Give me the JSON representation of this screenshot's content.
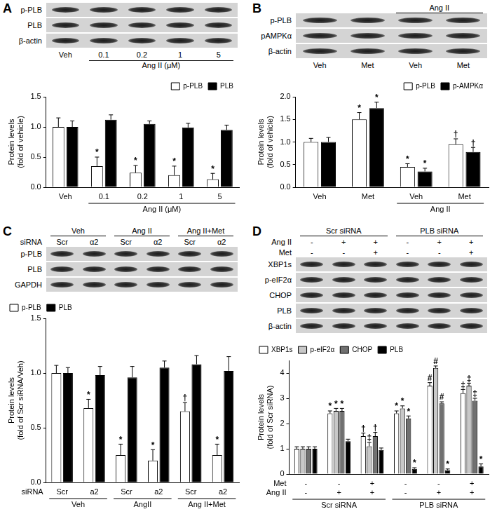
{
  "chart_data": [
    {
      "panel": "A",
      "type": "bar",
      "y_label": "Protein levels (fold of vehicle)",
      "categories": [
        "Veh",
        "0.1",
        "0.2",
        "1",
        "5"
      ],
      "groups": [
        {
          "label": "Ang II (μM)",
          "from": 1,
          "to": 4
        }
      ],
      "series": [
        {
          "name": "p-PLB",
          "color": "#ffffff",
          "values": [
            1.0,
            0.35,
            0.24,
            0.2,
            0.13
          ],
          "errors": [
            0.15,
            0.15,
            0.12,
            0.15,
            0.1
          ],
          "annotations": [
            null,
            "*",
            "*",
            "*",
            "*"
          ]
        },
        {
          "name": "PLB",
          "color": "#000000",
          "values": [
            1.0,
            1.12,
            1.05,
            0.99,
            0.95
          ],
          "errors": [
            0.1,
            0.08,
            0.05,
            0.07,
            0.08
          ]
        }
      ],
      "ylim": [
        0,
        1.5
      ],
      "yticks": [
        {
          "value": 0,
          "label": "0.0"
        },
        0.5,
        {
          "value": 1,
          "label": "1.0"
        },
        1.5
      ],
      "grid": false,
      "legend": "upper right",
      "blot": {
        "rows": [
          "p-PLB",
          "PLB",
          "β-actin"
        ],
        "header": [],
        "footer": [
          {
            "labels": [
              "Veh",
              "0.1",
              "0.2",
              "1",
              "5"
            ]
          },
          {
            "groups": [
              {
                "label": "Ang II (μM)",
                "from": 1,
                "to": 4
              }
            ]
          }
        ]
      }
    },
    {
      "panel": "B",
      "type": "bar",
      "y_label": "Protein levels (fold of vehicle)",
      "categories": [
        "Veh",
        "Met",
        "Veh",
        "Met"
      ],
      "groups": [
        {
          "label": "Ang II",
          "from": 2,
          "to": 3
        }
      ],
      "series": [
        {
          "name": "p-PLB",
          "color": "#ffffff",
          "values": [
            1.0,
            1.5,
            0.45,
            0.95
          ],
          "errors": [
            0.08,
            0.15,
            0.07,
            0.12
          ],
          "annotations": [
            null,
            "*",
            "*",
            "†"
          ]
        },
        {
          "name": "p-AMPKα",
          "color": "#000000",
          "values": [
            1.0,
            1.75,
            0.35,
            0.78
          ],
          "errors": [
            0.1,
            0.13,
            0.07,
            0.1
          ],
          "annotations": [
            null,
            "*",
            "*",
            "†"
          ]
        }
      ],
      "ylim": [
        0,
        2
      ],
      "yticks": [
        {
          "value": 0,
          "label": "0.0"
        },
        0.5,
        {
          "value": 1,
          "label": "1.0"
        },
        1.5,
        {
          "value": 2,
          "label": "2.0"
        }
      ],
      "grid": false,
      "legend": "upper right",
      "blot": {
        "rows": [
          "p-PLB",
          "pAMPKα",
          "β-actin"
        ],
        "header": [
          {
            "groups": [
              {
                "label": "Ang II",
                "from": 2,
                "to": 3
              }
            ]
          }
        ],
        "footer": [
          {
            "labels": [
              "Veh",
              "Met",
              "Veh",
              "Met"
            ]
          }
        ]
      }
    },
    {
      "panel": "C",
      "type": "bar",
      "y_label": "Protein levels (fold of Scr siRNA/Veh)",
      "categories": [
        "Scr",
        "a2",
        "Scr",
        "a2",
        "Scr",
        "a2"
      ],
      "category_title": "siRNA",
      "groups": [
        {
          "label": "Veh",
          "from": 0,
          "to": 1
        },
        {
          "label": "AngII",
          "from": 2,
          "to": 3
        },
        {
          "label": "Ang II+Met",
          "from": 4,
          "to": 5
        }
      ],
      "series": [
        {
          "name": "p-PLB",
          "color": "#ffffff",
          "values": [
            1.0,
            0.68,
            0.25,
            0.2,
            0.65,
            0.25
          ],
          "errors": [
            0.07,
            0.08,
            0.1,
            0.1,
            0.08,
            0.1
          ],
          "annotations": [
            null,
            "*",
            "*",
            "*",
            "†",
            "*"
          ]
        },
        {
          "name": "PLB",
          "color": "#000000",
          "values": [
            1.0,
            0.98,
            0.96,
            1.05,
            1.08,
            1.02
          ],
          "errors": [
            0.05,
            0.08,
            0.1,
            0.06,
            0.08,
            0.13
          ]
        }
      ],
      "ylim": [
        0,
        1.5
      ],
      "yticks": [
        {
          "value": 0,
          "label": "0.0"
        },
        0.5,
        {
          "value": 1,
          "label": "1.0"
        },
        1.5
      ],
      "grid": false,
      "legend": "upper left",
      "blot": {
        "rows": [
          "p-PLB",
          "PLB",
          "GAPDH"
        ],
        "header": [
          {
            "groups": [
              {
                "label": "Veh",
                "from": 0,
                "to": 1
              },
              {
                "label": "Ang II",
                "from": 2,
                "to": 3
              },
              {
                "label": "Ang II+Met",
                "from": 4,
                "to": 5
              }
            ]
          },
          {
            "title": "siRNA",
            "labels": [
              "Scr",
              "α2",
              "Scr",
              "α2",
              "Scr",
              "α2"
            ]
          }
        ],
        "footer": []
      }
    },
    {
      "panel": "D",
      "type": "bar",
      "y_label": "Protein levels (fold of Scr siRNA)",
      "categories": [
        "-",
        "-",
        "+",
        "-",
        "-",
        "+"
      ],
      "category_title": "Met",
      "extra_rows": [
        {
          "title": "Ang II",
          "labels": [
            "-",
            "+",
            "+",
            "-",
            "+",
            "+"
          ]
        }
      ],
      "groups": [
        {
          "label": "Scr siRNA",
          "from": 0,
          "to": 2
        },
        {
          "label": "PLB siRNA",
          "from": 3,
          "to": 5
        }
      ],
      "series": [
        {
          "name": "XBP1s",
          "color": "#ffffff",
          "values": [
            1.0,
            2.4,
            1.5,
            2.4,
            3.5,
            3.2
          ],
          "errors": [
            0.08,
            0.1,
            0.12,
            0.1,
            0.12,
            0.15
          ],
          "annotations": [
            null,
            "*",
            "†",
            "*",
            "#",
            "‡"
          ]
        },
        {
          "name": "p-eIF2α",
          "color": "#c8c8c8",
          "values": [
            1.0,
            2.5,
            1.1,
            2.6,
            4.2,
            3.5
          ],
          "errors": [
            0.08,
            0.1,
            0.15,
            0.1,
            0.08,
            0.1
          ],
          "annotations": [
            null,
            "*",
            "‡",
            "*",
            "#",
            "‡"
          ]
        },
        {
          "name": "CHOP",
          "color": "#707070",
          "values": [
            1.0,
            2.5,
            1.5,
            2.2,
            2.8,
            2.9
          ],
          "errors": [
            0.08,
            0.1,
            0.15,
            0.1,
            0.06,
            0.1
          ],
          "annotations": [
            null,
            "*",
            "†",
            "*",
            "#",
            "‡"
          ]
        },
        {
          "name": "PLB",
          "color": "#000000",
          "values": [
            1.0,
            1.3,
            0.95,
            0.2,
            0.15,
            0.3
          ],
          "errors": [
            0.08,
            0.08,
            0.08,
            0.05,
            0.05,
            0.1
          ],
          "annotations": [
            null,
            null,
            null,
            "*",
            "*",
            "*"
          ]
        }
      ],
      "ylim": [
        0,
        4.5
      ],
      "yticks": [
        0,
        1,
        2,
        3,
        4
      ],
      "grid": false,
      "legend": "upper left",
      "blot": {
        "rows": [
          "XBP1s",
          "p-eIF2α",
          "CHOP",
          "PLB",
          "β-actin"
        ],
        "header": [
          {
            "groups": [
              {
                "label": "Scr siRNA",
                "from": 0,
                "to": 2
              },
              {
                "label": "PLB siRNA",
                "from": 3,
                "to": 5
              }
            ]
          },
          {
            "title": "Ang II",
            "labels": [
              "-",
              "+",
              "+",
              "-",
              "+",
              "+"
            ]
          },
          {
            "title": "Met",
            "labels": [
              "-",
              "-",
              "+",
              "-",
              "-",
              "+"
            ]
          }
        ],
        "footer": []
      }
    }
  ]
}
